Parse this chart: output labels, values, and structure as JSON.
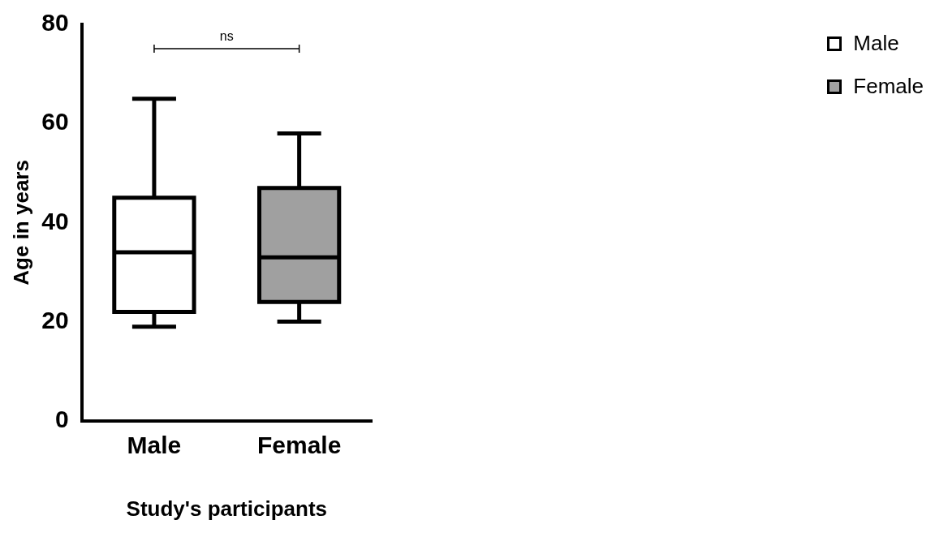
{
  "chart_data": {
    "type": "box",
    "xlabel": "Study's participants",
    "ylabel": "Age in years",
    "categories": [
      "Male",
      "Female"
    ],
    "series": [
      {
        "name": "Male",
        "color": "#ffffff",
        "boxes": [
          {
            "low": 19,
            "q1": 22,
            "median": 34,
            "q3": 45,
            "high": 65
          },
          null
        ]
      },
      {
        "name": "Female",
        "color": "#a0a0a0",
        "boxes": [
          null,
          {
            "low": 20,
            "q1": 24,
            "median": 33,
            "q3": 47,
            "high": 58
          }
        ]
      }
    ],
    "ylim": [
      0,
      80
    ],
    "yticks": [
      0,
      20,
      40,
      60,
      80
    ],
    "grid": false,
    "legend": "top right",
    "annotations": [
      "ns"
    ]
  }
}
